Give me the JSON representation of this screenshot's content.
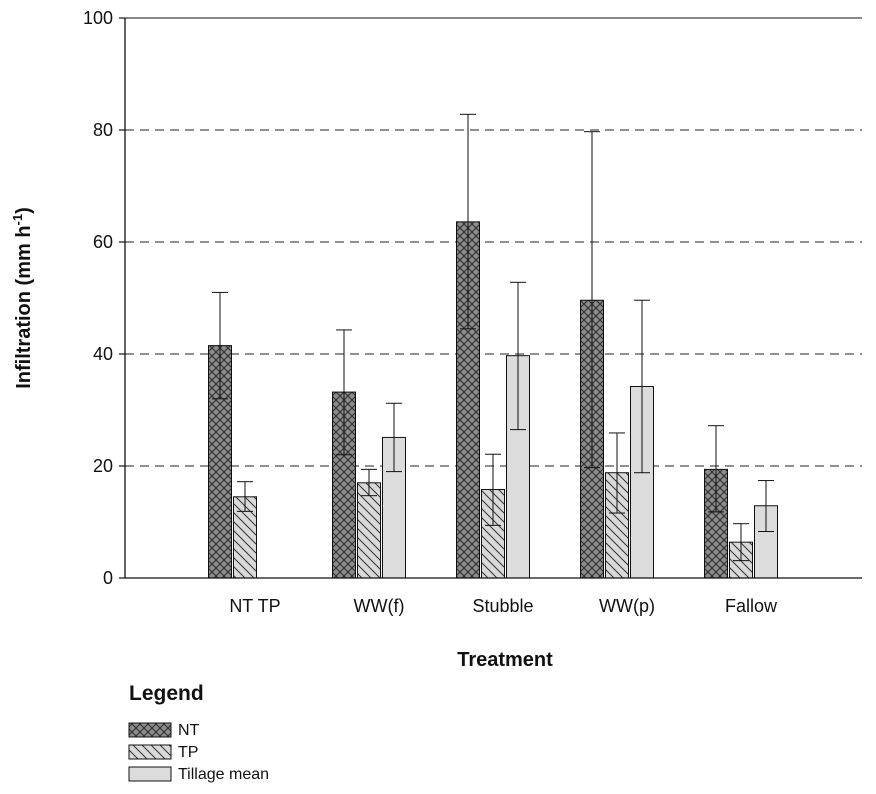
{
  "chart_data": {
    "type": "bar",
    "xlabel": "Treatment",
    "ylabel": "Infiltration (mm h",
    "ylabel_superscript": "-1",
    "ylabel_close": ")",
    "ylim": [
      0,
      100
    ],
    "yticks": [
      0,
      20,
      40,
      60,
      80,
      100
    ],
    "grid": "horizontal dashed at 20, 40, 60, 80",
    "categories": [
      "NT TP",
      "WW(f)",
      "Stubble",
      "WW(p)",
      "Fallow"
    ],
    "series": [
      {
        "name": "NT",
        "pattern": "crosshatch",
        "color": "#8c8c8c",
        "values": [
          41.5,
          33.2,
          63.6,
          49.6,
          19.4
        ],
        "error_low": [
          32.0,
          22.0,
          44.5,
          19.7,
          11.8
        ],
        "error_high": [
          51.0,
          44.3,
          82.8,
          79.7,
          27.2
        ]
      },
      {
        "name": "TP",
        "pattern": "diagonal",
        "color": "#d9d9d9",
        "values": [
          14.5,
          17.0,
          15.8,
          18.8,
          6.4
        ],
        "error_low": [
          11.9,
          14.7,
          9.4,
          11.6,
          3.1
        ],
        "error_high": [
          17.2,
          19.4,
          22.1,
          25.9,
          9.7
        ]
      },
      {
        "name": "Tillage mean",
        "pattern": "solid",
        "color": "#dcdcdc",
        "values": [
          null,
          25.1,
          39.7,
          34.2,
          12.9
        ],
        "error_low": [
          null,
          19.0,
          26.5,
          18.8,
          8.3
        ],
        "error_high": [
          null,
          31.2,
          52.8,
          49.6,
          17.4
        ]
      }
    ],
    "legend": {
      "title": "Legend",
      "placement": "bottom-left"
    }
  }
}
